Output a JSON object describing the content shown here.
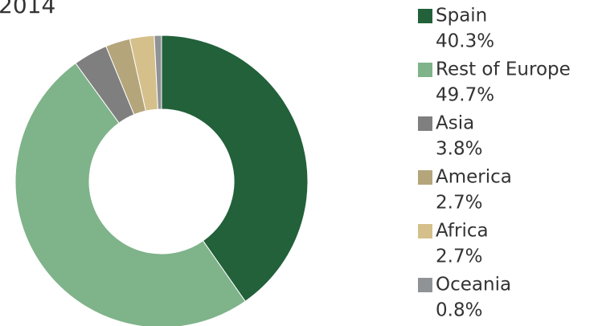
{
  "chart_data": {
    "type": "donut",
    "title": "2014",
    "categories": [
      "Spain",
      "Rest of Europe",
      "Asia",
      "America",
      "Africa",
      "Oceania"
    ],
    "values": [
      40.3,
      49.7,
      3.8,
      2.7,
      2.7,
      0.8
    ],
    "value_labels": [
      "40.3%",
      "49.7%",
      "3.8%",
      "2.7%",
      "2.7%",
      "0.8%"
    ],
    "colors": [
      "#22613a",
      "#7fb38a",
      "#7f7f7f",
      "#b4a57b",
      "#d5c08b",
      "#8f9396"
    ],
    "legend": "right"
  }
}
